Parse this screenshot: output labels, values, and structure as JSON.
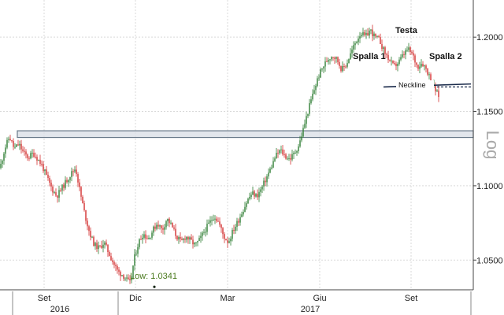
{
  "chart_data": {
    "type": "candlestick",
    "title": "",
    "scale_label": "Log",
    "y_axis": {
      "min": 1.03,
      "max": 1.225,
      "ticks": [
        "1.2000",
        "1.1500",
        "1.1000",
        "1.0500"
      ],
      "tick_values": [
        1.2,
        1.15,
        1.1,
        1.05
      ],
      "position": "right"
    },
    "x_axis": {
      "months": [
        "Set",
        "Dic",
        "Mar",
        "Giu",
        "Set"
      ],
      "years": [
        "2016",
        "2017"
      ]
    },
    "grid": true,
    "colors": {
      "up": "#2e7d32",
      "down": "#d32f2f",
      "neckline": "#1a2a4a",
      "band_fill": "#d8dee6",
      "band_stroke": "#6a7a8a",
      "low_label": "#4a7a1e"
    },
    "support_band": {
      "from": 1.1325,
      "to": 1.137
    },
    "neckline": {
      "start_value": 1.1665,
      "end_value": 1.1685,
      "projection_end_value": 1.1665
    },
    "annotations": {
      "spalla1": "Spalla 1",
      "testa": "Testa",
      "spalla2": "Spalla 2",
      "neckline": "Neckline",
      "low": "Low: 1.0341"
    },
    "price_path": [
      [
        0,
        1.112
      ],
      [
        6,
        1.125
      ],
      [
        12,
        1.133
      ],
      [
        18,
        1.125
      ],
      [
        24,
        1.128
      ],
      [
        30,
        1.122
      ],
      [
        36,
        1.119
      ],
      [
        42,
        1.122
      ],
      [
        48,
        1.118
      ],
      [
        54,
        1.113
      ],
      [
        60,
        1.105
      ],
      [
        66,
        1.098
      ],
      [
        72,
        1.093
      ],
      [
        78,
        1.098
      ],
      [
        84,
        1.103
      ],
      [
        90,
        1.108
      ],
      [
        96,
        1.112
      ],
      [
        102,
        1.095
      ],
      [
        108,
        1.08
      ],
      [
        114,
        1.068
      ],
      [
        120,
        1.06
      ],
      [
        126,
        1.058
      ],
      [
        132,
        1.062
      ],
      [
        138,
        1.055
      ],
      [
        144,
        1.048
      ],
      [
        150,
        1.042
      ],
      [
        156,
        1.04
      ],
      [
        162,
        1.036
      ],
      [
        166,
        1.0341
      ],
      [
        170,
        1.05
      ],
      [
        176,
        1.062
      ],
      [
        182,
        1.068
      ],
      [
        188,
        1.064
      ],
      [
        194,
        1.07
      ],
      [
        200,
        1.075
      ],
      [
        206,
        1.07
      ],
      [
        212,
        1.078
      ],
      [
        218,
        1.073
      ],
      [
        224,
        1.066
      ],
      [
        230,
        1.062
      ],
      [
        236,
        1.066
      ],
      [
        242,
        1.063
      ],
      [
        248,
        1.06
      ],
      [
        254,
        1.064
      ],
      [
        260,
        1.07
      ],
      [
        266,
        1.075
      ],
      [
        272,
        1.08
      ],
      [
        278,
        1.075
      ],
      [
        284,
        1.066
      ],
      [
        290,
        1.062
      ],
      [
        296,
        1.07
      ],
      [
        302,
        1.076
      ],
      [
        308,
        1.083
      ],
      [
        314,
        1.09
      ],
      [
        320,
        1.095
      ],
      [
        326,
        1.093
      ],
      [
        332,
        1.098
      ],
      [
        338,
        1.105
      ],
      [
        344,
        1.112
      ],
      [
        350,
        1.12
      ],
      [
        356,
        1.124
      ],
      [
        362,
        1.12
      ],
      [
        368,
        1.118
      ],
      [
        374,
        1.122
      ],
      [
        380,
        1.128
      ],
      [
        386,
        1.14
      ],
      [
        392,
        1.152
      ],
      [
        398,
        1.163
      ],
      [
        404,
        1.173
      ],
      [
        410,
        1.18
      ],
      [
        416,
        1.185
      ],
      [
        422,
        1.188
      ],
      [
        428,
        1.185
      ],
      [
        434,
        1.178
      ],
      [
        440,
        1.182
      ],
      [
        446,
        1.19
      ],
      [
        452,
        1.197
      ],
      [
        458,
        1.203
      ],
      [
        464,
        1.2
      ],
      [
        470,
        1.205
      ],
      [
        476,
        1.2
      ],
      [
        482,
        1.198
      ],
      [
        488,
        1.19
      ],
      [
        494,
        1.185
      ],
      [
        500,
        1.18
      ],
      [
        506,
        1.183
      ],
      [
        512,
        1.188
      ],
      [
        518,
        1.192
      ],
      [
        524,
        1.188
      ],
      [
        530,
        1.18
      ],
      [
        536,
        1.183
      ],
      [
        542,
        1.178
      ],
      [
        548,
        1.17
      ],
      [
        554,
        1.163
      ],
      [
        558,
        1.16
      ]
    ]
  }
}
